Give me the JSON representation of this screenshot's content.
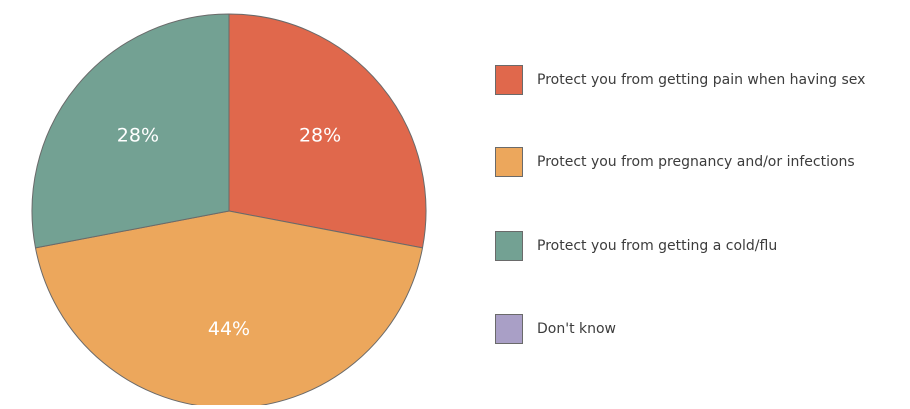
{
  "chart_data": {
    "type": "pie",
    "categories": [
      "Protect you from getting pain when having sex",
      "Protect you from pregnancy and/or infections",
      "Protect you from getting a cold/flu",
      "Don't know"
    ],
    "values": [
      28,
      44,
      28,
      0
    ],
    "data_labels": [
      "28%",
      "44%",
      "28%",
      ""
    ],
    "colors": [
      "#e0684c",
      "#eca75c",
      "#73a193",
      "#a99fc6"
    ],
    "label_color": "#ffffff",
    "slice_border_color": "#6a6a6a",
    "start_angle_deg": 0,
    "direction": "clockwise",
    "legend_position": "right"
  }
}
